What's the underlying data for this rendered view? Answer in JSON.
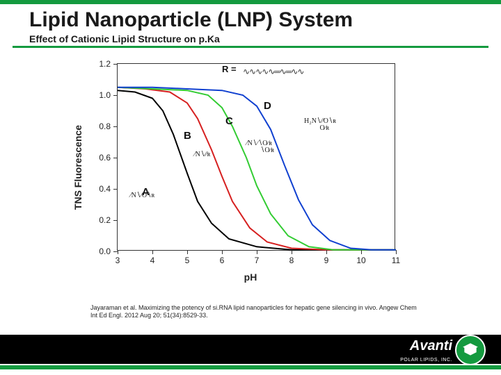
{
  "accent_color": "#149a3f",
  "title": "Lipid Nanoparticle (LNP) System",
  "subtitle": "Effect of Cationic Lipid Structure on p.Ka",
  "chart": {
    "type": "line",
    "xlabel": "pH",
    "ylabel": "TNS Fluorescence",
    "xlim": [
      3,
      11
    ],
    "ylim": [
      0.0,
      1.2
    ],
    "ytick_step": 0.2,
    "xtick_step": 1,
    "line_width": 2,
    "background_color": "#ffffff",
    "border_color": "#333333",
    "tick_fontsize": 12,
    "label_fontsize": 14,
    "series": [
      {
        "name": "A",
        "color": "#000000",
        "label_pos": [
          3.7,
          0.42
        ],
        "points": [
          [
            3,
            1.03
          ],
          [
            3.5,
            1.02
          ],
          [
            4,
            0.98
          ],
          [
            4.3,
            0.9
          ],
          [
            4.6,
            0.75
          ],
          [
            5,
            0.5
          ],
          [
            5.3,
            0.32
          ],
          [
            5.7,
            0.18
          ],
          [
            6.2,
            0.08
          ],
          [
            7,
            0.03
          ],
          [
            8,
            0.01
          ],
          [
            9,
            0.01
          ],
          [
            10,
            0.01
          ],
          [
            11,
            0.01
          ]
        ]
      },
      {
        "name": "B",
        "color": "#d62020",
        "label_pos": [
          4.9,
          0.78
        ],
        "points": [
          [
            3,
            1.05
          ],
          [
            3.8,
            1.04
          ],
          [
            4.5,
            1.02
          ],
          [
            5,
            0.95
          ],
          [
            5.3,
            0.85
          ],
          [
            5.7,
            0.65
          ],
          [
            6,
            0.48
          ],
          [
            6.3,
            0.32
          ],
          [
            6.8,
            0.15
          ],
          [
            7.3,
            0.06
          ],
          [
            8,
            0.02
          ],
          [
            9,
            0.01
          ],
          [
            10,
            0.01
          ],
          [
            11,
            0.01
          ]
        ]
      },
      {
        "name": "C",
        "color": "#33cc33",
        "label_pos": [
          6.1,
          0.87
        ],
        "points": [
          [
            3,
            1.05
          ],
          [
            4,
            1.04
          ],
          [
            5,
            1.03
          ],
          [
            5.6,
            1.0
          ],
          [
            6,
            0.92
          ],
          [
            6.3,
            0.8
          ],
          [
            6.7,
            0.6
          ],
          [
            7,
            0.42
          ],
          [
            7.4,
            0.24
          ],
          [
            7.9,
            0.1
          ],
          [
            8.5,
            0.03
          ],
          [
            9.2,
            0.01
          ],
          [
            10,
            0.01
          ],
          [
            11,
            0.01
          ]
        ]
      },
      {
        "name": "D",
        "color": "#1040d0",
        "label_pos": [
          7.2,
          0.97
        ],
        "points": [
          [
            3,
            1.05
          ],
          [
            4,
            1.05
          ],
          [
            5,
            1.04
          ],
          [
            6,
            1.03
          ],
          [
            6.6,
            1.0
          ],
          [
            7,
            0.93
          ],
          [
            7.4,
            0.78
          ],
          [
            7.8,
            0.55
          ],
          [
            8.2,
            0.33
          ],
          [
            8.6,
            0.17
          ],
          [
            9.1,
            0.07
          ],
          [
            9.7,
            0.02
          ],
          [
            10.3,
            0.01
          ],
          [
            11,
            0.01
          ]
        ]
      }
    ],
    "insets": {
      "R_label": "R =",
      "struct_A": "⁄N∖⁄O∖ʀ",
      "struct_B": "⁄N∖⁄⁄ʀ",
      "struct_C": "⁄N∖⁄∖O⁄ʀ\n        ∖O⁄ʀ",
      "struct_D": "H₂N∖⁄⁄O∖ʀ\n         O⁄ʀ"
    }
  },
  "citation": "Jayaraman et al. Maximizing the potency of si.RNA lipid nanoparticles for hepatic gene silencing in vivo. Angew Chem Int Ed Engl. 2012 Aug 20; 51(34):8529-33.",
  "logo": {
    "brand": "Avanti",
    "sub": "POLAR LIPIDS, INC."
  }
}
